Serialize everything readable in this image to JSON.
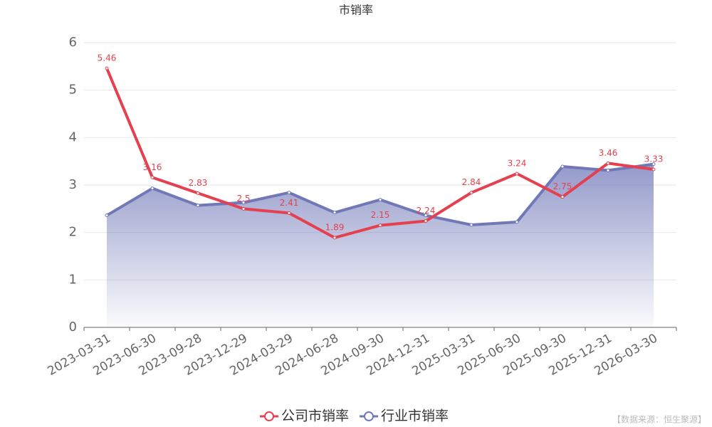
{
  "chart_data": {
    "type": "line",
    "title": "市销率",
    "categories": [
      "2023-03-31",
      "2023-06-30",
      "2023-09-28",
      "2023-12-29",
      "2024-03-29",
      "2024-06-28",
      "2024-09-30",
      "2024-12-31",
      "2025-03-31",
      "2025-06-30",
      "2025-09-30",
      "2025-12-31",
      "2026-03-30"
    ],
    "series": [
      {
        "name": "公司市销率",
        "color": "#e5404f",
        "values": [
          5.46,
          3.16,
          2.83,
          2.5,
          2.41,
          1.89,
          2.15,
          2.24,
          2.84,
          3.24,
          2.75,
          3.46,
          3.33
        ],
        "labels": true
      },
      {
        "name": "行业市销率",
        "color": "#7078b8",
        "values": [
          2.36,
          2.93,
          2.57,
          2.63,
          2.84,
          2.42,
          2.69,
          2.36,
          2.16,
          2.22,
          3.39,
          3.31,
          3.44
        ],
        "area": true
      }
    ],
    "ylim": [
      0,
      6
    ],
    "yticks": [
      0,
      1,
      2,
      3,
      4,
      5,
      6
    ],
    "grid": true,
    "source": "【数据来源：恒生聚源】"
  }
}
